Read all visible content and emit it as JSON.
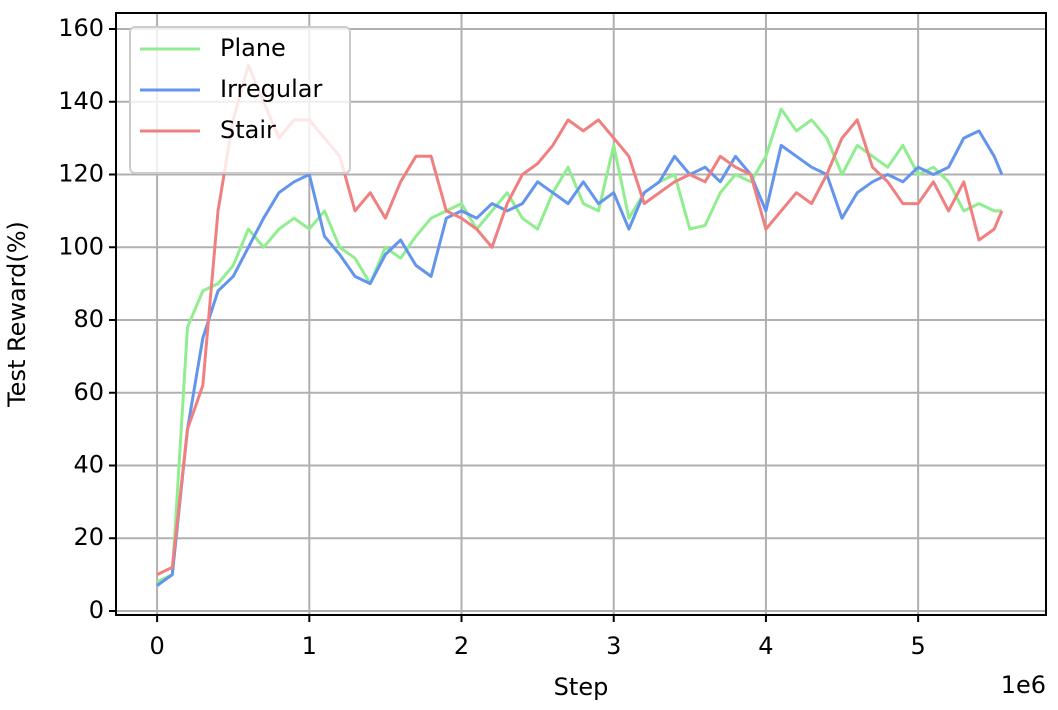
{
  "chart_data": {
    "type": "line",
    "xlabel": "Step",
    "ylabel": "Test Reward(%)",
    "x_offset_label": "1e6",
    "x": [
      0,
      0.1,
      0.2,
      0.3,
      0.4,
      0.5,
      0.6,
      0.7,
      0.8,
      0.9,
      1.0,
      1.1,
      1.2,
      1.3,
      1.4,
      1.5,
      1.6,
      1.7,
      1.8,
      1.9,
      2.0,
      2.1,
      2.2,
      2.3,
      2.4,
      2.5,
      2.6,
      2.7,
      2.8,
      2.9,
      3.0,
      3.1,
      3.2,
      3.3,
      3.4,
      3.5,
      3.6,
      3.7,
      3.8,
      3.9,
      4.0,
      4.1,
      4.2,
      4.3,
      4.4,
      4.5,
      4.6,
      4.7,
      4.8,
      4.9,
      5.0,
      5.1,
      5.2,
      5.3,
      5.4,
      5.5,
      5.55
    ],
    "series": [
      {
        "name": "Plane",
        "color": "#90ee90",
        "values": [
          8,
          10,
          78,
          88,
          90,
          95,
          105,
          100,
          105,
          108,
          105,
          110,
          100,
          97,
          90,
          100,
          97,
          103,
          108,
          110,
          112,
          105,
          110,
          115,
          108,
          105,
          115,
          122,
          112,
          110,
          128,
          108,
          115,
          118,
          120,
          105,
          106,
          115,
          120,
          118,
          125,
          138,
          132,
          135,
          130,
          120,
          128,
          125,
          122,
          128,
          120,
          122,
          118,
          110,
          112,
          110,
          110
        ]
      },
      {
        "name": "Irregular",
        "color": "#6495ed",
        "values": [
          7,
          10,
          50,
          75,
          88,
          92,
          100,
          108,
          115,
          118,
          120,
          103,
          98,
          92,
          90,
          98,
          102,
          95,
          92,
          108,
          110,
          108,
          112,
          110,
          112,
          118,
          115,
          112,
          118,
          112,
          115,
          105,
          115,
          118,
          125,
          120,
          122,
          118,
          125,
          120,
          110,
          128,
          125,
          122,
          120,
          108,
          115,
          118,
          120,
          118,
          122,
          120,
          122,
          130,
          132,
          125,
          120
        ]
      },
      {
        "name": "Stair",
        "color": "#f08080",
        "values": [
          10,
          12,
          50,
          62,
          110,
          135,
          150,
          140,
          130,
          135,
          135,
          130,
          125,
          110,
          115,
          108,
          118,
          125,
          125,
          110,
          108,
          105,
          100,
          112,
          120,
          123,
          128,
          135,
          132,
          135,
          130,
          125,
          112,
          115,
          118,
          120,
          118,
          125,
          122,
          120,
          105,
          110,
          115,
          112,
          120,
          130,
          135,
          122,
          118,
          112,
          112,
          118,
          110,
          118,
          102,
          105,
          110
        ]
      }
    ],
    "xlim": [
      -0.27,
      5.84
    ],
    "ylim": [
      -1.1,
      164.4
    ],
    "xticks": [
      0,
      1,
      2,
      3,
      4,
      5
    ],
    "yticks": [
      0,
      20,
      40,
      60,
      80,
      100,
      120,
      140,
      160
    ],
    "grid": true,
    "legend": "upper left"
  }
}
